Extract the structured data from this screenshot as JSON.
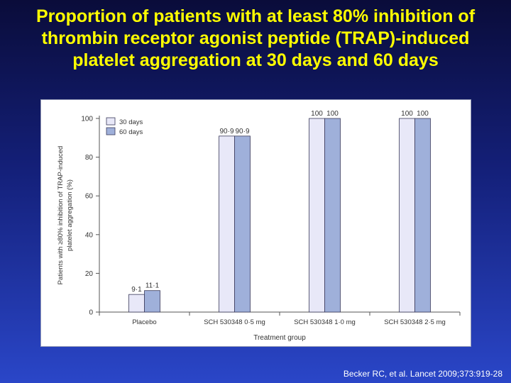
{
  "slide": {
    "title_lines": [
      "Proportion of patients with at least 80% inhibition of",
      "thrombin receptor agonist peptide (TRAP)-induced",
      "platelet aggregation at 30 days and 60 days"
    ],
    "citation": "Becker RC, et al. Lancet 2009;373:919-28"
  },
  "colors": {
    "series_30_days": "#e8e8f8",
    "series_60_days": "#9fb0da",
    "title": "#ffff00"
  },
  "chart_data": {
    "type": "bar",
    "xlabel": "Treatment group",
    "ylabel_lines": [
      "Patients with ≥80% inhibition of TRAP-induced",
      "platelet aggregation (%)"
    ],
    "ylim": [
      0,
      100
    ],
    "yticks": [
      0,
      20,
      40,
      60,
      80,
      100
    ],
    "legend_position": "top-left",
    "categories": [
      "Placebo",
      "SCH 530348 0·5 mg",
      "SCH 530348 1·0 mg",
      "SCH 530348 2·5 mg"
    ],
    "series": [
      {
        "name": "30 days",
        "values": [
          9.1,
          90.9,
          100,
          100
        ],
        "labels": [
          "9·1",
          "90·9",
          "100",
          "100"
        ]
      },
      {
        "name": "60 days",
        "values": [
          11.1,
          90.9,
          100,
          100
        ],
        "labels": [
          "11·1",
          "90·9",
          "100",
          "100"
        ]
      }
    ]
  }
}
